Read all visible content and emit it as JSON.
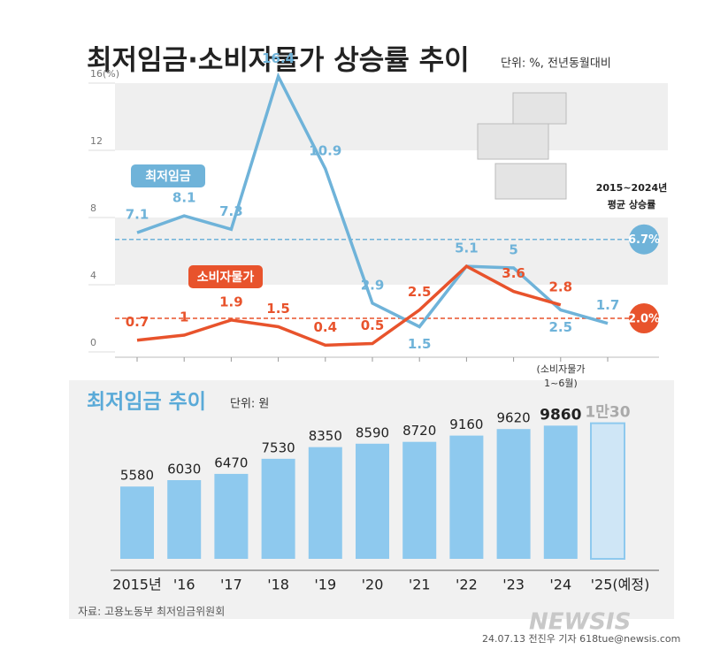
{
  "chart_data": [
    {
      "type": "line",
      "title": "최저임금·소비자물가 상승률 추이",
      "subtitle": "단위: %, 전년동월대비",
      "categories": [
        "2015",
        "2016",
        "2017",
        "2018",
        "2019",
        "2020",
        "2021",
        "2022",
        "2023",
        "2024",
        "2025"
      ],
      "series": [
        {
          "name": "최저임금",
          "color": "#6fb3d9",
          "values": [
            7.1,
            8.1,
            7.3,
            16.4,
            10.9,
            2.9,
            1.5,
            5.1,
            5.0,
            2.5,
            1.7
          ]
        },
        {
          "name": "소비자물가",
          "color": "#e8532c",
          "values": [
            0.7,
            1.0,
            1.9,
            1.5,
            0.4,
            0.5,
            2.5,
            5.1,
            3.6,
            2.8,
            null
          ]
        }
      ],
      "ylim": [
        0,
        16.5
      ],
      "yticks": [
        0,
        4,
        8,
        12,
        {
          "value": 16,
          "label": "16(%)"
        }
      ],
      "reference_lines": [
        {
          "value": 6.7,
          "label": "6.7%",
          "color": "#6fb3d9"
        },
        {
          "value": 2.0,
          "label": "2.0%",
          "color": "#e8532c"
        }
      ],
      "annotation": [
        "2015~2024년",
        "평균 상승률"
      ],
      "note": [
        "(소비자물가",
        "1~6월)"
      ]
    },
    {
      "type": "bar",
      "title": "최저임금 추이",
      "subtitle": "단위: 원",
      "categories": [
        "2015년",
        "'16",
        "'17",
        "'18",
        "'19",
        "'20",
        "'21",
        "'22",
        "'23",
        "'24",
        "'25(예정)"
      ],
      "values": [
        5580,
        6030,
        6470,
        7530,
        8350,
        8590,
        8720,
        9160,
        9620,
        9860,
        10030
      ],
      "value_labels": [
        null,
        null,
        null,
        null,
        null,
        null,
        null,
        null,
        null,
        null,
        "1만30"
      ],
      "color": "#8ec9ee",
      "ylim": [
        500,
        11000
      ]
    }
  ],
  "source": "자료: 고용노동부 최저임금위원회",
  "logo": "NEWSIS",
  "credit": "24.07.13 전진우 기자 618tue@newsis.com"
}
